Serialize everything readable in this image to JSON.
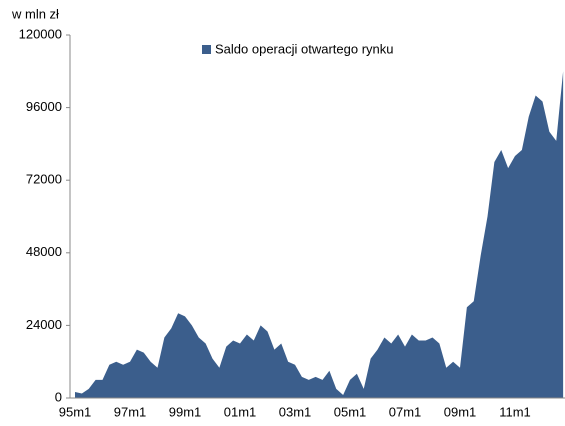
{
  "chart_data": {
    "type": "area",
    "y_unit_label": "w mln zł",
    "categories": [
      "95m1",
      null,
      null,
      null,
      null,
      null,
      null,
      null,
      "97m1",
      null,
      null,
      null,
      null,
      null,
      null,
      null,
      "99m1",
      null,
      null,
      null,
      null,
      null,
      null,
      null,
      "01m1",
      null,
      null,
      null,
      null,
      null,
      null,
      null,
      "03m1",
      null,
      null,
      null,
      null,
      null,
      null,
      null,
      "05m1",
      null,
      null,
      null,
      null,
      null,
      null,
      null,
      "07m1",
      null,
      null,
      null,
      null,
      null,
      null,
      null,
      "09m1",
      null,
      null,
      null,
      null,
      null,
      null,
      null,
      "11m1",
      null,
      null,
      null,
      null,
      null,
      null,
      null
    ],
    "series": [
      {
        "name": "Saldo operacji otwartego rynku",
        "color": "#3b5e8c",
        "values": [
          2000,
          1500,
          3000,
          6000,
          6000,
          11000,
          12000,
          11000,
          12000,
          16000,
          15000,
          12000,
          10000,
          20000,
          23000,
          28000,
          27000,
          24000,
          20000,
          18000,
          13000,
          10000,
          17000,
          19000,
          18000,
          21000,
          19000,
          24000,
          22000,
          16000,
          18000,
          12000,
          11000,
          7000,
          6000,
          7000,
          6000,
          9000,
          3000,
          1000,
          6000,
          8000,
          3000,
          13000,
          16000,
          20000,
          18000,
          21000,
          17000,
          21000,
          19000,
          19000,
          20000,
          18000,
          10000,
          12000,
          10000,
          30000,
          32000,
          47000,
          60000,
          78000,
          82000,
          76000,
          80000,
          82000,
          93000,
          100000,
          98000,
          88000,
          85000,
          108000
        ]
      }
    ],
    "ylim": [
      0,
      120000
    ],
    "yticks": [
      0,
      24000,
      48000,
      72000,
      96000,
      120000
    ],
    "legend": "top"
  }
}
